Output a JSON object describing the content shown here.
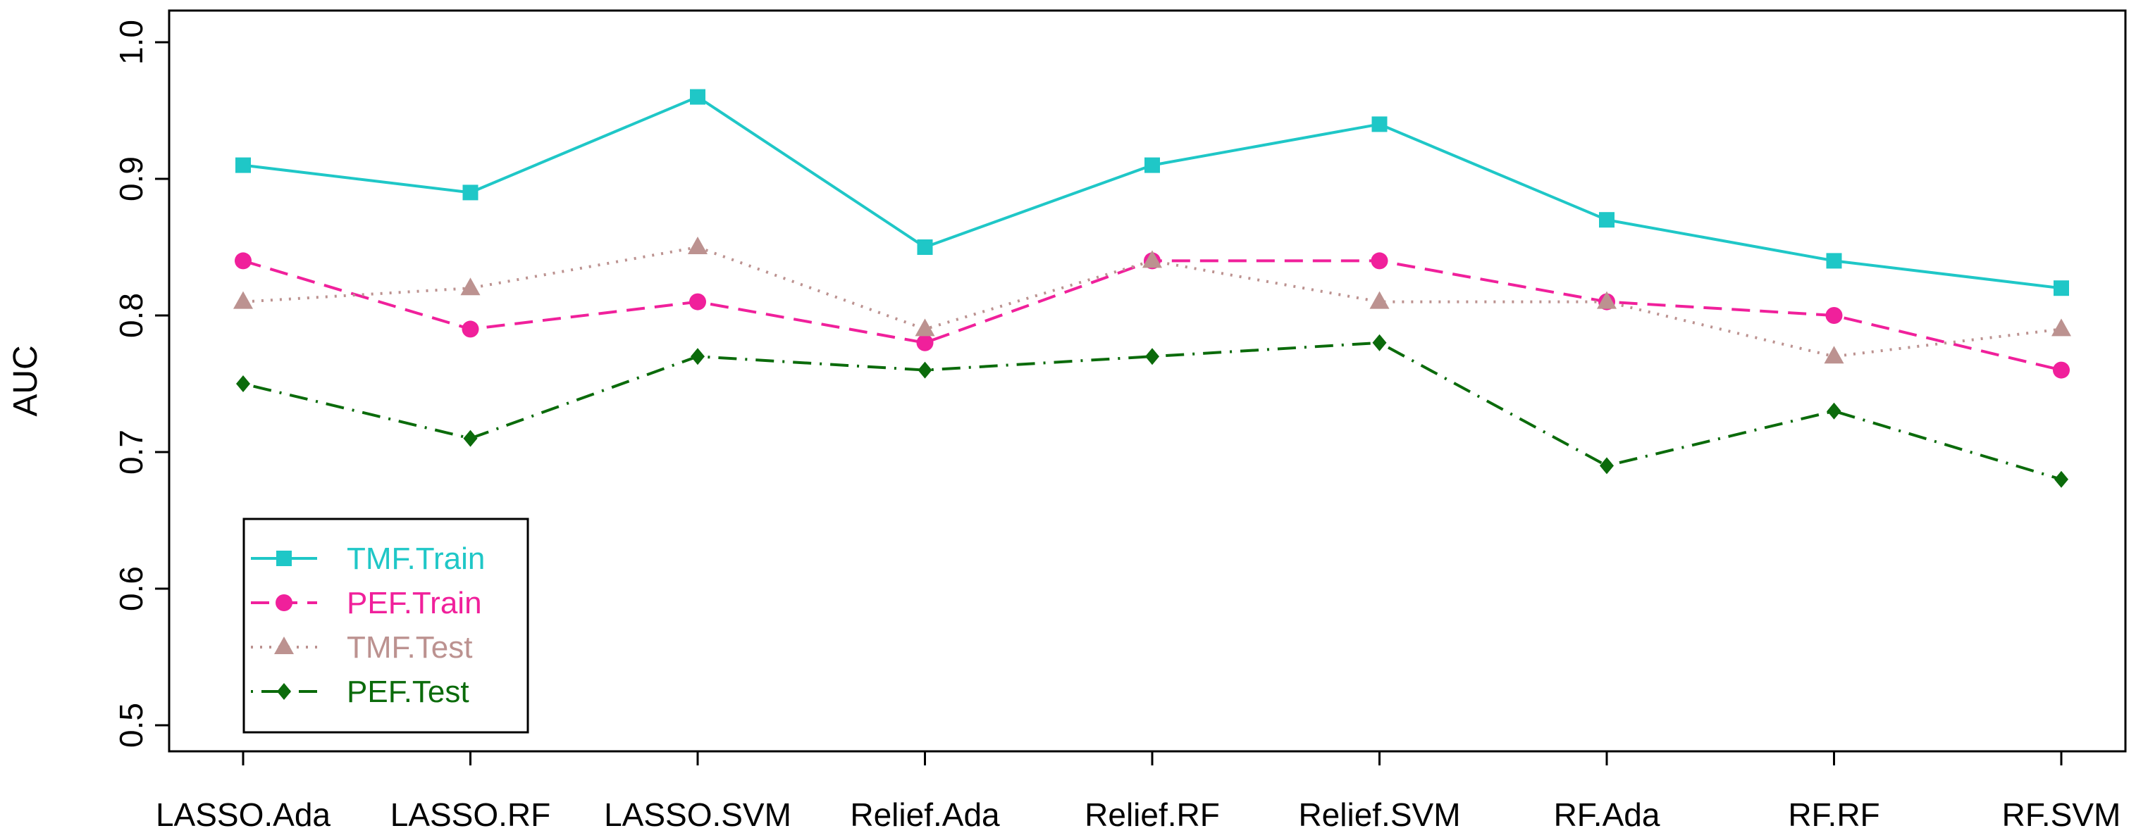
{
  "chart_data": {
    "type": "line",
    "title": "",
    "xlabel": "",
    "ylabel": "AUC",
    "ylim": [
      0.5,
      1.0
    ],
    "yticks": [
      "0.5",
      "0.6",
      "0.7",
      "0.8",
      "0.9",
      "1.0"
    ],
    "categories": [
      "LASSO.Ada",
      "LASSO.RF",
      "LASSO.SVM",
      "Relief.Ada",
      "Relief.RF",
      "Relief.SVM",
      "RF.Ada",
      "RF.RF",
      "RF.SVM"
    ],
    "legend_position": "bottom-left",
    "series": [
      {
        "name": "TMF.Train",
        "color": "#1fc7c7",
        "marker": "square",
        "line": "solid",
        "values": [
          0.91,
          0.89,
          0.96,
          0.85,
          0.91,
          0.94,
          0.87,
          0.84,
          0.82
        ]
      },
      {
        "name": "PEF.Train",
        "color": "#f0209b",
        "marker": "circle",
        "line": "dashed",
        "values": [
          0.84,
          0.79,
          0.81,
          0.78,
          0.84,
          0.84,
          0.81,
          0.8,
          0.76
        ]
      },
      {
        "name": "TMF.Test",
        "color": "#bc9290",
        "marker": "triangle",
        "line": "dotted",
        "values": [
          0.81,
          0.82,
          0.85,
          0.79,
          0.84,
          0.81,
          0.81,
          0.77,
          0.79
        ]
      },
      {
        "name": "PEF.Test",
        "color": "#0b6b0b",
        "marker": "diamond",
        "line": "dotdash",
        "values": [
          0.75,
          0.71,
          0.77,
          0.76,
          0.77,
          0.78,
          0.69,
          0.73,
          0.68
        ]
      }
    ]
  }
}
